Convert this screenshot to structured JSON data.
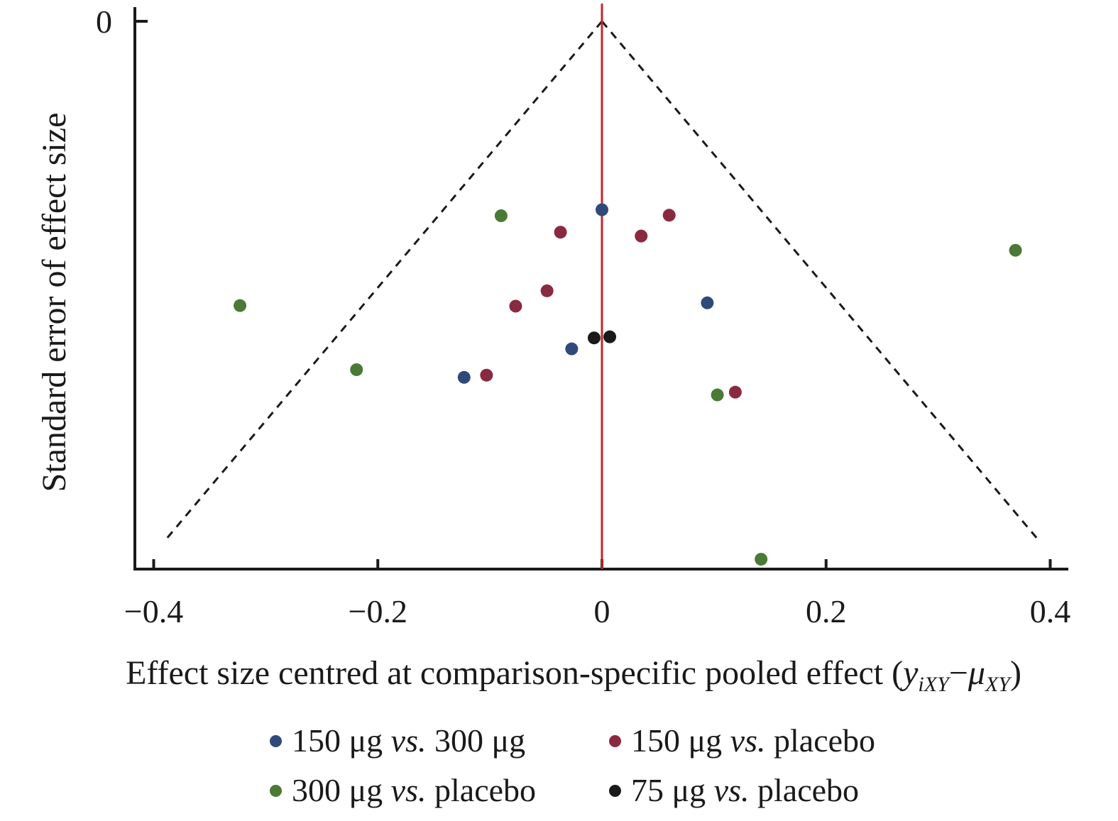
{
  "chart_data": {
    "type": "scatter",
    "title": "",
    "xlabel": "Effect size centred at comparison-specific pooled effect (y iXY−μXY)",
    "xlabel_parts": {
      "prefix": "Effect size centred at comparison-specific pooled effect (",
      "y": "y",
      "y_sub": "iXY",
      "minus": "−",
      "mu": "μ",
      "mu_sub": "XY",
      "suffix": ")"
    },
    "ylabel": "Standard error of effect size",
    "xlim": [
      -0.4,
      0.4
    ],
    "x_ticks": [
      -0.4,
      -0.2,
      0,
      0.2,
      0.4
    ],
    "x_tick_labels": [
      "−0.4",
      "−0.2",
      "0",
      "0.2",
      "0.4"
    ],
    "y_ticks": [
      0
    ],
    "y_tick_labels": [
      "0"
    ],
    "y_axis_inverted": true,
    "reference_line": {
      "x": 0,
      "color": "#c0272d"
    },
    "funnel_lines": {
      "style": "dashed",
      "color": "#1a1a1a",
      "apex_x": 0,
      "spread_at_bottom": 0.39
    },
    "grid": false,
    "legend_position": "bottom",
    "series": [
      {
        "name": "150 μg vs. 300 μg",
        "color": "#2f4a7a",
        "points": [
          [
            0.0,
            0.344
          ],
          [
            0.094,
            0.514
          ],
          [
            -0.027,
            0.598
          ],
          [
            -0.123,
            0.65
          ]
        ]
      },
      {
        "name": "150 μg vs. placebo",
        "color": "#8a2a40",
        "points": [
          [
            0.06,
            0.354
          ],
          [
            -0.037,
            0.385
          ],
          [
            0.035,
            0.392
          ],
          [
            -0.049,
            0.492
          ],
          [
            -0.077,
            0.52
          ],
          [
            -0.103,
            0.646
          ],
          [
            0.119,
            0.677
          ]
        ]
      },
      {
        "name": "300 μg vs. placebo",
        "color": "#4a7a36",
        "points": [
          [
            -0.09,
            0.355
          ],
          [
            0.369,
            0.418
          ],
          [
            -0.323,
            0.519
          ],
          [
            -0.219,
            0.636
          ],
          [
            0.103,
            0.682
          ],
          [
            0.142,
            0.982
          ]
        ]
      },
      {
        "name": "75 μg vs. placebo",
        "color": "#1a1a1a",
        "points": [
          [
            -0.007,
            0.578
          ],
          [
            0.007,
            0.576
          ]
        ]
      }
    ],
    "ylim": [
      0,
      1.0
    ]
  },
  "legend": {
    "items": [
      {
        "pre": "150 μg ",
        "it": "vs.",
        "post": " 300 μg",
        "color": "#2f4a7a"
      },
      {
        "pre": "150 μg ",
        "it": "vs.",
        "post": " placebo",
        "color": "#8a2a40"
      },
      {
        "pre": "300 μg ",
        "it": "vs.",
        "post": " placebo",
        "color": "#4a7a36"
      },
      {
        "pre": "75 μg ",
        "it": "vs.",
        "post": " placebo",
        "color": "#1a1a1a"
      }
    ]
  }
}
